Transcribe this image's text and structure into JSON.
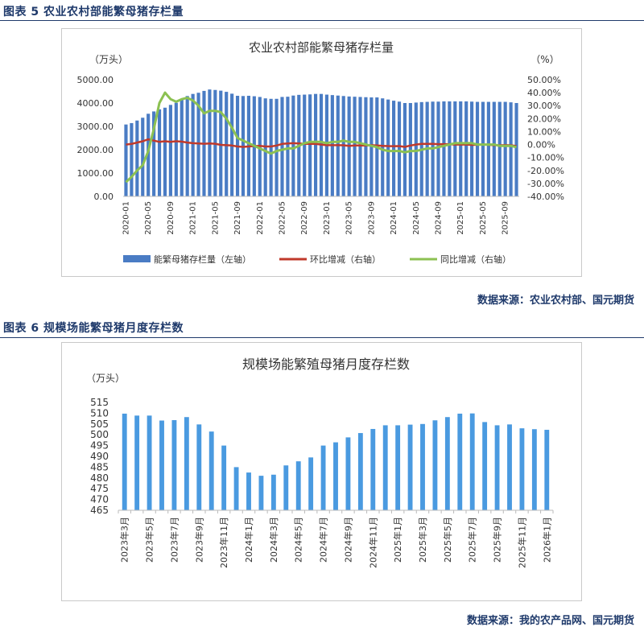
{
  "figure1": {
    "caption": "图表 5  农业农村部能繁母猪存栏量",
    "source": "数据来源：农业农村部、国元期货",
    "chart_data": {
      "type": "bar",
      "title": "农业农村部能繁母猪存栏量",
      "ylabel_left": "（万头）",
      "ylabel_right": "（%）",
      "ylim_left": [
        0,
        5000
      ],
      "ylim_right": [
        -40,
        50
      ],
      "left_ticks": [
        "5000.00",
        "4000.00",
        "3000.00",
        "2000.00",
        "1000.00",
        "0.00"
      ],
      "right_ticks": [
        "50.00%",
        "40.00%",
        "30.00%",
        "20.00%",
        "10.00%",
        "0.00%",
        "-10.00%",
        "-20.00%",
        "-30.00%",
        "-40.00%"
      ],
      "x_tick_labels": [
        "2020-01",
        "2020-05",
        "2020-09",
        "2021-01",
        "2021-05",
        "2021-09",
        "2022-01",
        "2022-05",
        "2022-09",
        "2023-01",
        "2023-05",
        "2023-09",
        "2024-01",
        "2024-05",
        "2024-09",
        "2025-01",
        "2025-05",
        "2025-09"
      ],
      "x": [
        "2020-01",
        "2020-02",
        "2020-03",
        "2020-04",
        "2020-05",
        "2020-06",
        "2020-07",
        "2020-08",
        "2020-09",
        "2020-10",
        "2020-11",
        "2020-12",
        "2021-01",
        "2021-02",
        "2021-03",
        "2021-04",
        "2021-05",
        "2021-06",
        "2021-07",
        "2021-08",
        "2021-09",
        "2021-10",
        "2021-11",
        "2021-12",
        "2022-01",
        "2022-02",
        "2022-03",
        "2022-04",
        "2022-05",
        "2022-06",
        "2022-07",
        "2022-08",
        "2022-09",
        "2022-10",
        "2022-11",
        "2022-12",
        "2023-01",
        "2023-02",
        "2023-03",
        "2023-04",
        "2023-05",
        "2023-06",
        "2023-07",
        "2023-08",
        "2023-09",
        "2023-10",
        "2023-11",
        "2023-12",
        "2024-01",
        "2024-02",
        "2024-03",
        "2024-04",
        "2024-05",
        "2024-06",
        "2024-07",
        "2024-08",
        "2024-09",
        "2024-10",
        "2024-11",
        "2024-12",
        "2025-01",
        "2025-02",
        "2025-03",
        "2025-04",
        "2025-05",
        "2025-06",
        "2025-07",
        "2025-08",
        "2025-09",
        "2025-10",
        "2025-11"
      ],
      "series": [
        {
          "name": "能繁母猪存栏量（左轴）",
          "axis": "left",
          "kind": "bar",
          "color": "#4a7cc4",
          "values": [
            3080,
            3140,
            3250,
            3370,
            3540,
            3640,
            3730,
            3800,
            3920,
            4010,
            4180,
            4300,
            4390,
            4440,
            4520,
            4580,
            4560,
            4530,
            4480,
            4400,
            4310,
            4300,
            4310,
            4290,
            4260,
            4200,
            4180,
            4180,
            4260,
            4270,
            4320,
            4350,
            4360,
            4370,
            4390,
            4390,
            4360,
            4340,
            4320,
            4300,
            4280,
            4270,
            4260,
            4250,
            4240,
            4240,
            4200,
            4150,
            4100,
            4060,
            4000,
            4000,
            4020,
            4040,
            4050,
            4060,
            4060,
            4070,
            4070,
            4070,
            4070,
            4070,
            4060,
            4050,
            4050,
            4050,
            4050,
            4050,
            4050,
            4030,
            4000
          ]
        },
        {
          "name": "环比增减（右轴）",
          "axis": "right",
          "kind": "line",
          "color": "#c0392b",
          "values": [
            0.0,
            0.5,
            1.5,
            2.5,
            4.0,
            3.0,
            2.0,
            2.5,
            2.0,
            2.5,
            2.2,
            1.5,
            1.0,
            0.8,
            0.6,
            0.8,
            0.6,
            -0.3,
            -0.5,
            -0.8,
            -1.5,
            -1.8,
            -1.5,
            -1.2,
            -1.0,
            -1.5,
            -1.5,
            -0.8,
            0.5,
            0.8,
            1.0,
            0.8,
            0.5,
            0.5,
            0.5,
            0.0,
            -0.5,
            -0.5,
            -0.5,
            -0.6,
            -1.0,
            -0.8,
            -0.8,
            -0.8,
            -0.5,
            -0.7,
            -1.0,
            -1.2,
            -1.3,
            -1.2,
            -1.8,
            -0.8,
            0.0,
            0.5,
            0.5,
            0.5,
            0.3,
            0.3,
            0.2,
            0.0,
            0.0,
            0.0,
            -0.3,
            -0.2,
            0.0,
            -0.2,
            -0.5,
            -0.6,
            -0.5,
            -0.6,
            -1.2
          ]
        },
        {
          "name": "同比增减（右轴）",
          "axis": "right",
          "kind": "line",
          "color": "#8cc152",
          "values": [
            -29,
            -25,
            -20,
            -16,
            -5,
            12,
            32,
            40,
            35,
            33,
            35,
            36,
            34,
            30,
            24,
            26,
            26,
            25,
            20,
            13,
            5,
            3,
            1,
            -1,
            -3,
            -5,
            -7,
            -5,
            -4,
            -3,
            -3,
            -1,
            1,
            2,
            2,
            2,
            1,
            2,
            2,
            3,
            2,
            2,
            1,
            0,
            -1,
            -2,
            -4,
            -5,
            -5,
            -5,
            -6,
            -5,
            -5,
            -4,
            -3,
            -3,
            -2,
            -1,
            0,
            1,
            1,
            1,
            1,
            0,
            0,
            0,
            0,
            -1,
            -1,
            -1,
            -2
          ]
        }
      ]
    }
  },
  "figure2": {
    "caption": "图表 6  规模场能繁母猪月度存栏数",
    "source": "数据来源：我的农产品网、国元期货",
    "chart_data": {
      "type": "bar",
      "title": "规模场能繁殖母猪月度存栏数",
      "ylabel": "（万头）",
      "ylim": [
        465,
        515
      ],
      "y_ticks": [
        "515",
        "510",
        "505",
        "500",
        "495",
        "490",
        "485",
        "480",
        "475",
        "470",
        "465"
      ],
      "x_tick_labels": [
        "2023年3月",
        "2023年5月",
        "2023年7月",
        "2023年9月",
        "2023年11月",
        "2024年1月",
        "2024年3月",
        "2024年5月",
        "2024年7月",
        "2024年9月",
        "2024年11月",
        "2025年1月",
        "2025年3月",
        "2025年5月",
        "2025年7月",
        "2025年9月",
        "2025年11月",
        "2026年1月"
      ],
      "categories": [
        "2023年3月",
        "2023年4月",
        "2023年5月",
        "2023年6月",
        "2023年7月",
        "2023年8月",
        "2023年9月",
        "2023年10月",
        "2023年11月",
        "2023年12月",
        "2024年1月",
        "2024年2月",
        "2024年3月",
        "2024年4月",
        "2024年5月",
        "2024年6月",
        "2024年7月",
        "2024年8月",
        "2024年9月",
        "2024年10月",
        "2024年11月",
        "2024年12月",
        "2025年1月",
        "2025年2月",
        "2025年3月",
        "2025年4月",
        "2025年5月",
        "2025年6月",
        "2025年7月",
        "2025年8月",
        "2025年9月",
        "2025年10月",
        "2025年11月",
        "2025年12月",
        "2026年1月"
      ],
      "series": [
        {
          "color": "#4a9ae0",
          "values": [
            509.8,
            508.9,
            508.9,
            506.6,
            506.8,
            508.2,
            504.8,
            501.5,
            495,
            485,
            482.5,
            481,
            481.5,
            485.8,
            487.7,
            489.5,
            495,
            496.5,
            498.8,
            500.8,
            502.7,
            504.4,
            504.4,
            504.7,
            505,
            506.7,
            508.2,
            509.8,
            509.9,
            505.9,
            504.4,
            504.8,
            503,
            502.6,
            502.3
          ]
        }
      ]
    }
  }
}
